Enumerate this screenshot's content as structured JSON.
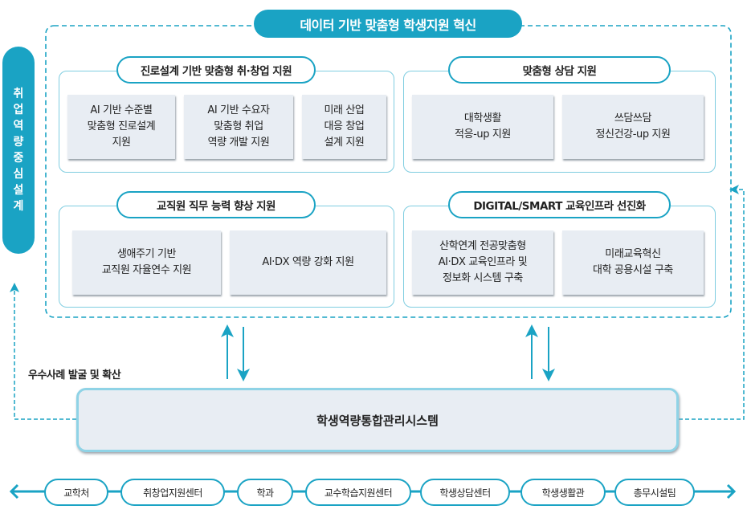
{
  "title": "데이터 기반 맞춤형 학생지원 혁신",
  "side_label": [
    "취",
    "업",
    "역",
    "량",
    "중",
    "심",
    "설",
    "계"
  ],
  "quadrants": [
    {
      "title": "진로설계 기반 맞춤형 취·창업 지원",
      "cards": [
        "AI 기반 수준별\n맞춤형 진로설계\n지원",
        "AI 기반 수요자\n맞춤형 취업\n역량 개발 지원",
        "미래 산업\n대응 창업\n설계 지원"
      ]
    },
    {
      "title": "맞춤형 상담 지원",
      "cards": [
        "대학생활\n적응-up 지원",
        "쓰담쓰담\n정신건강-up 지원"
      ]
    },
    {
      "title": "교직원 직무 능력 향상 지원",
      "cards": [
        "생애주기 기반\n교직원 자율연수 지원",
        "AI·DX 역량 강화 지원"
      ]
    },
    {
      "title": "DIGITAL/SMART 교육인프라 선진화",
      "cards": [
        "산학연계 전공맞춤형\nAI·DX 교육인프라 및\n정보화 시스템 구축",
        "미래교육혁신\n대학 공용시설 구축"
      ]
    }
  ],
  "feedback_label": "우수사례 발굴 및 확산",
  "system": "학생역량통합관리시스템",
  "departments": [
    "교학처",
    "취창업지원센터",
    "학과",
    "교수학습지원센터",
    "학생상담센터",
    "학생생활관",
    "총무시설팀"
  ],
  "colors": {
    "accent": "#1aa3c4",
    "card": "#e8edf3",
    "border": "#7fcde0"
  }
}
